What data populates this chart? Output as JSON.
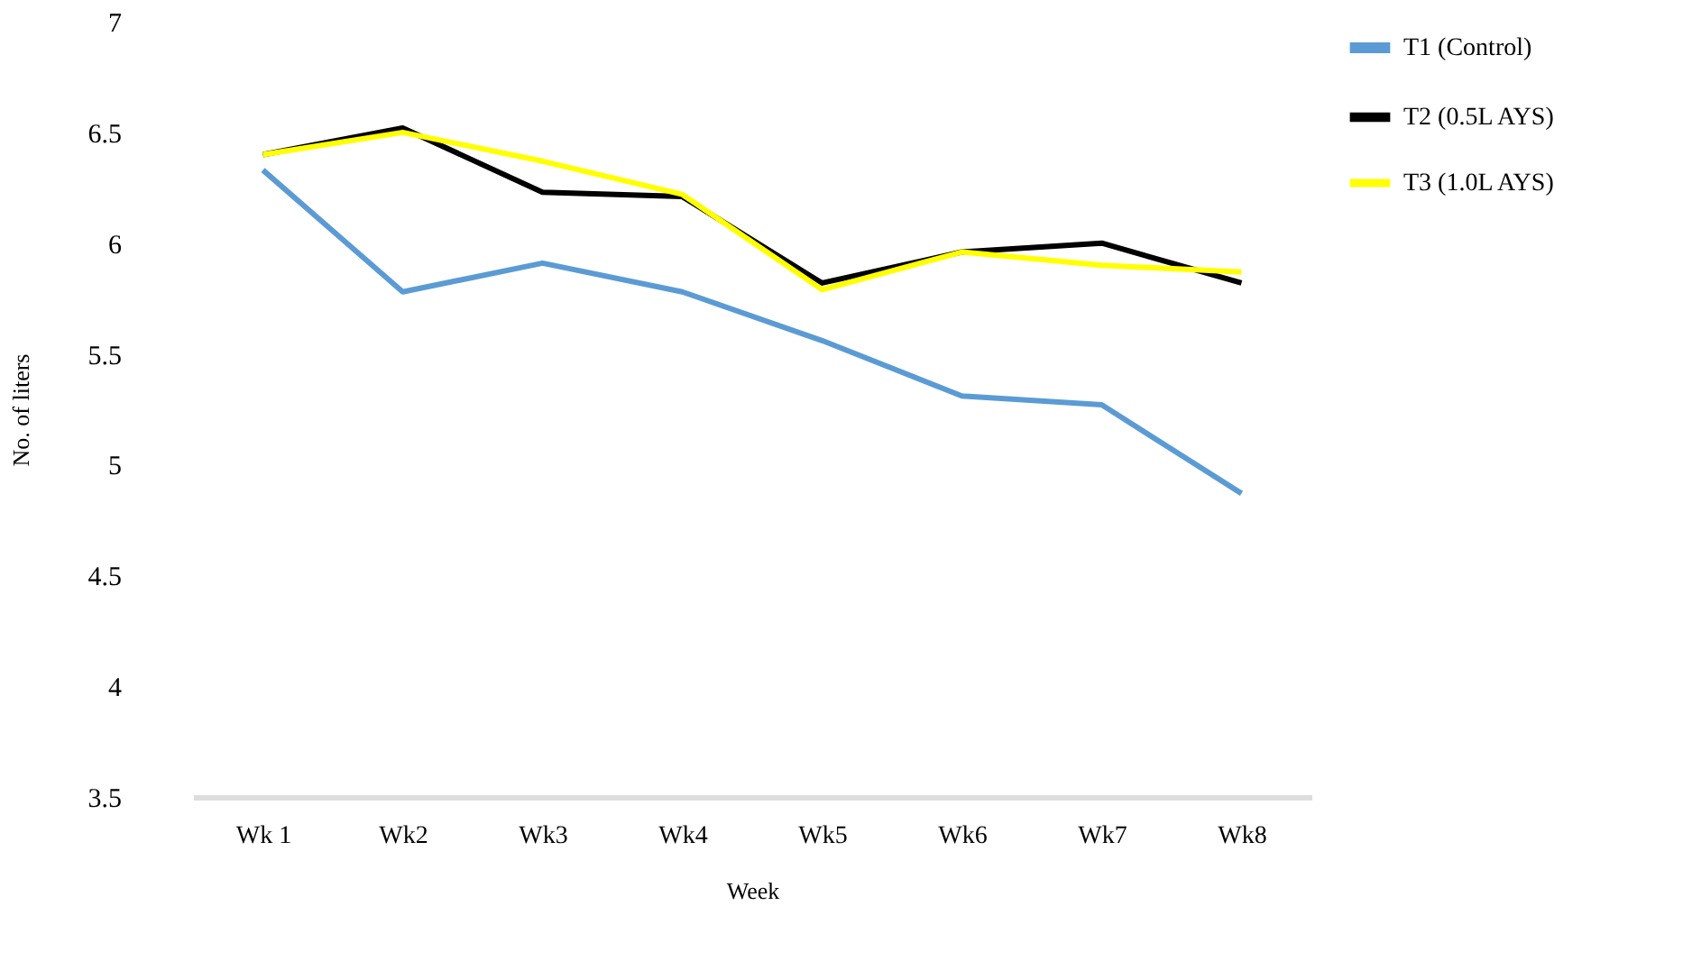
{
  "chart_data": {
    "type": "line",
    "xlabel": "Week",
    "ylabel": "No. of liters",
    "categories": [
      "Wk 1",
      "Wk2",
      "Wk3",
      "Wk4",
      "Wk5",
      "Wk6",
      "Wk7",
      "Wk8"
    ],
    "series": [
      {
        "name": "T1 (Control)",
        "color": "#5b9bd5",
        "values": [
          6.33,
          5.78,
          5.91,
          5.78,
          5.56,
          5.31,
          5.27,
          4.87
        ]
      },
      {
        "name": "T2 (0.5L AYS)",
        "color": "#000000",
        "values": [
          6.4,
          6.52,
          6.23,
          6.21,
          5.82,
          5.96,
          6.0,
          5.82
        ]
      },
      {
        "name": "T3 (1.0L AYS)",
        "color": "#ffff00",
        "values": [
          6.4,
          6.5,
          6.37,
          6.22,
          5.79,
          5.96,
          5.9,
          5.87
        ]
      }
    ],
    "ylim": [
      3.5,
      7
    ],
    "yticks": [
      3.5,
      4,
      4.5,
      5,
      5.5,
      6,
      6.5,
      7
    ],
    "grid": false,
    "legend": "right",
    "marker": "none",
    "line_style": "solid"
  }
}
